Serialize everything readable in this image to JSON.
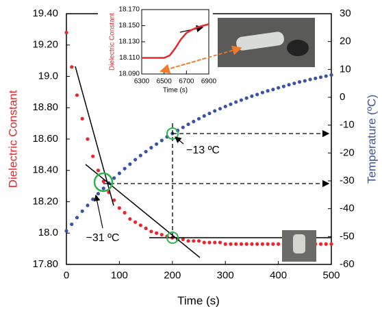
{
  "chart_data": [
    {
      "type": "scatter",
      "xlabel": "Time (s)",
      "ylabel": "Dielectric Constant",
      "y2label": "Temperature (ºC)",
      "annotations": [
        "−31 ºC",
        "−13 ºC"
      ],
      "x": [
        0,
        10,
        20,
        30,
        40,
        50,
        60,
        70,
        80,
        90,
        100,
        110,
        120,
        130,
        140,
        150,
        160,
        170,
        180,
        190,
        200,
        210,
        220,
        230,
        240,
        250,
        260,
        270,
        280,
        290,
        300,
        310,
        320,
        330,
        340,
        350,
        360,
        370,
        380,
        390,
        400,
        410,
        420,
        430,
        440,
        450,
        460,
        470,
        480,
        490,
        500
      ],
      "series": [
        {
          "color": "#e8262c",
          "values": [
            19.28,
            19.06,
            18.88,
            18.73,
            18.6,
            18.49,
            18.4,
            18.33,
            18.26,
            18.21,
            18.16,
            18.13,
            18.09,
            18.07,
            18.05,
            18.03,
            18.01,
            18.0,
            17.99,
            17.98,
            17.97,
            17.96,
            17.96,
            17.95,
            17.95,
            17.95,
            17.94,
            17.94,
            17.94,
            17.94,
            17.93,
            17.93,
            17.93,
            17.93,
            17.93,
            17.93,
            17.93,
            17.93,
            17.93,
            17.93,
            17.93,
            17.93,
            17.93,
            17.93,
            17.93,
            17.93,
            17.93,
            17.93,
            17.93,
            17.93,
            17.93
          ]
        },
        {
          "color": "#3a53a4",
          "axis": "y2",
          "values": [
            -48,
            -45.6,
            -43.2,
            -40.9,
            -38.8,
            -36.6,
            -34.6,
            -32.7,
            -30.8,
            -29.0,
            -27.3,
            -25.6,
            -24.0,
            -22.4,
            -20.9,
            -19.5,
            -18.1,
            -16.8,
            -15.5,
            -14.2,
            -13.0,
            -11.9,
            -10.8,
            -9.7,
            -8.7,
            -7.7,
            -6.7,
            -5.8,
            -4.9,
            -4.1,
            -3.3,
            -2.5,
            -1.7,
            -1.0,
            -0.3,
            0.4,
            1.0,
            1.7,
            2.3,
            2.8,
            3.4,
            3.9,
            4.5,
            5.0,
            5.5,
            5.9,
            6.4,
            6.8,
            7.2,
            7.6,
            8.0
          ]
        }
      ],
      "xlim": [
        0,
        500
      ],
      "xticks": [
        0,
        100,
        200,
        300,
        400,
        500
      ],
      "ylim": [
        17.8,
        19.4
      ],
      "yticks": [
        {
          "value": 17.8,
          "label": "17.80"
        },
        {
          "value": 18,
          "label": "18.0"
        },
        {
          "value": 18.2,
          "label": "18.20"
        },
        {
          "value": 18.4,
          "label": "18.40"
        },
        {
          "value": 18.6,
          "label": "18.60"
        },
        {
          "value": 18.8,
          "label": "18.80"
        },
        {
          "value": 19,
          "label": "19.0"
        },
        {
          "value": 19.2,
          "label": "19.20"
        },
        {
          "value": 19.4,
          "label": "19.40"
        }
      ],
      "y2lim": [
        -60,
        30
      ],
      "y2ticks": [
        -60,
        -50,
        -40,
        -30,
        -20,
        -10,
        0,
        10,
        20,
        30
      ]
    },
    {
      "type": "line",
      "xlabel": "Time (s)",
      "ylabel": "Dielectric Constant",
      "x": [
        6300,
        6350,
        6400,
        6450,
        6500,
        6550,
        6600,
        6650,
        6700,
        6750,
        6800,
        6850,
        6900
      ],
      "series": [
        {
          "color": "#e8262c",
          "values": [
            18.11,
            18.11,
            18.11,
            18.11,
            18.11,
            18.113,
            18.122,
            18.133,
            18.141,
            18.145,
            18.148,
            18.15,
            18.152
          ]
        }
      ],
      "xlim": [
        6300,
        6900
      ],
      "xticks": [
        6300,
        6500,
        6700,
        6900
      ],
      "ylim": [
        18.09,
        18.17
      ],
      "yticks": [
        {
          "value": 18.09,
          "label": "18.090"
        },
        {
          "value": 18.11,
          "label": "18.110"
        },
        {
          "value": 18.13,
          "label": "18.130"
        },
        {
          "value": 18.15,
          "label": "18.150"
        },
        {
          "value": 18.17,
          "label": "18.170"
        }
      ]
    }
  ]
}
